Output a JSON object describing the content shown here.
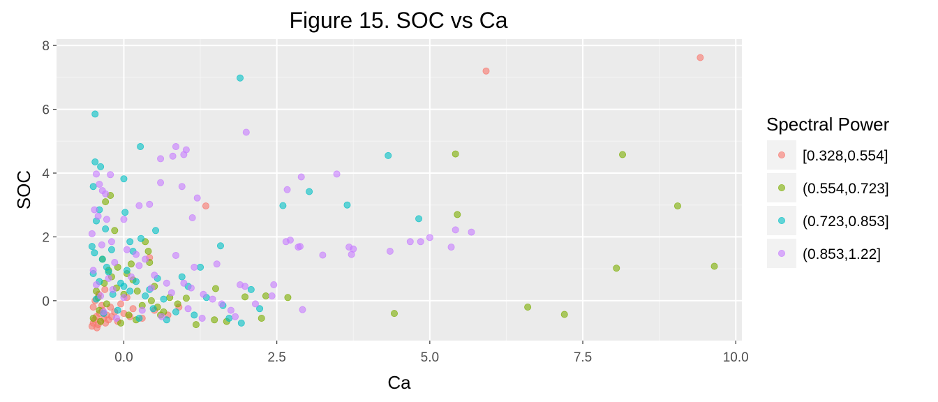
{
  "chart_data": {
    "type": "scatter",
    "title": "Figure 15. SOC vs Ca",
    "xlabel": "Ca",
    "ylabel": "SOC",
    "xlim": [
      -1.1,
      10.1
    ],
    "ylim": [
      -1.25,
      8.2
    ],
    "x_ticks": [
      0.0,
      2.5,
      5.0,
      7.5,
      10.0
    ],
    "x_tick_labels": [
      "0.0",
      "2.5",
      "5.0",
      "7.5",
      "10.0"
    ],
    "y_ticks": [
      0,
      2,
      4,
      6,
      8
    ],
    "y_tick_labels": [
      "0",
      "2",
      "4",
      "6",
      "8"
    ],
    "grid": true,
    "background": "#ebebeb",
    "legend": {
      "title": "Spectral Power",
      "position": "right"
    },
    "series": [
      {
        "name": "[0.328,0.554]",
        "color": "#f8766d",
        "points": [
          [
            9.42,
            7.62
          ],
          [
            5.92,
            7.2
          ],
          [
            1.34,
            2.97
          ],
          [
            0.42,
            1.35
          ],
          [
            -0.52,
            -0.8
          ],
          [
            -0.5,
            -0.7
          ],
          [
            -0.48,
            -0.6
          ],
          [
            -0.45,
            -0.5
          ],
          [
            -0.42,
            -0.75
          ],
          [
            -0.4,
            -0.4
          ],
          [
            -0.38,
            -0.65
          ],
          [
            -0.35,
            -0.3
          ],
          [
            -0.33,
            -0.55
          ],
          [
            -0.3,
            -0.7
          ],
          [
            -0.28,
            -0.45
          ],
          [
            -0.25,
            -0.6
          ],
          [
            -0.22,
            -0.2
          ],
          [
            -0.2,
            -0.5
          ],
          [
            -0.15,
            -0.35
          ],
          [
            -0.1,
            -0.65
          ],
          [
            -0.05,
            -0.1
          ],
          [
            0.0,
            -0.4
          ],
          [
            0.05,
            0.1
          ],
          [
            0.1,
            -0.5
          ],
          [
            -0.5,
            -0.2
          ],
          [
            -0.47,
            0.0
          ],
          [
            -0.44,
            -0.85
          ],
          [
            -0.41,
            0.2
          ],
          [
            -0.36,
            -0.15
          ],
          [
            -0.31,
            0.35
          ],
          [
            0.15,
            -0.25
          ],
          [
            0.3,
            -0.55
          ],
          [
            0.5,
            -0.3
          ],
          [
            0.72,
            -0.45
          ],
          [
            0.9,
            -0.2
          ]
        ]
      },
      {
        "name": "(0.554,0.723]",
        "color": "#7cae00",
        "points": [
          [
            5.42,
            4.6
          ],
          [
            8.15,
            4.58
          ],
          [
            9.05,
            2.97
          ],
          [
            9.65,
            1.08
          ],
          [
            8.05,
            1.02
          ],
          [
            5.45,
            2.7
          ],
          [
            4.42,
            -0.4
          ],
          [
            6.6,
            -0.2
          ],
          [
            7.2,
            -0.43
          ],
          [
            2.68,
            0.1
          ],
          [
            2.25,
            -0.55
          ],
          [
            2.32,
            0.15
          ],
          [
            1.98,
            0.12
          ],
          [
            1.68,
            -0.65
          ],
          [
            1.5,
            0.38
          ],
          [
            1.48,
            -0.6
          ],
          [
            1.18,
            -0.75
          ],
          [
            1.02,
            0.08
          ],
          [
            0.35,
            1.85
          ],
          [
            0.4,
            1.55
          ],
          [
            0.42,
            1.2
          ],
          [
            0.5,
            0.45
          ],
          [
            0.55,
            -0.2
          ],
          [
            0.65,
            -0.35
          ],
          [
            0.75,
            0.1
          ],
          [
            0.88,
            -0.1
          ],
          [
            -0.22,
            3.3
          ],
          [
            -0.3,
            3.1
          ],
          [
            -0.15,
            2.2
          ],
          [
            -0.35,
            1.3
          ],
          [
            -0.1,
            1.05
          ],
          [
            0.05,
            0.85
          ],
          [
            -0.45,
            0.3
          ],
          [
            -0.4,
            -0.3
          ],
          [
            -0.32,
            0.55
          ],
          [
            -0.28,
            -0.1
          ],
          [
            -0.2,
            0.75
          ],
          [
            -0.12,
            0.4
          ],
          [
            -0.05,
            -0.7
          ],
          [
            0.0,
            0.2
          ],
          [
            0.08,
            -0.45
          ],
          [
            0.15,
            0.65
          ],
          [
            0.22,
            0.3
          ],
          [
            0.3,
            -0.15
          ],
          [
            -0.5,
            -0.55
          ],
          [
            -0.42,
            0.1
          ],
          [
            -0.38,
            -0.65
          ],
          [
            -0.25,
            0.95
          ],
          [
            0.12,
            1.15
          ],
          [
            0.2,
            -0.6
          ],
          [
            0.45,
            0.0
          ],
          [
            0.6,
            -0.45
          ]
        ]
      },
      {
        "name": "(0.723,0.853]",
        "color": "#00bfc4",
        "points": [
          [
            1.9,
            6.98
          ],
          [
            -0.47,
            5.85
          ],
          [
            0.27,
            4.83
          ],
          [
            4.32,
            4.55
          ],
          [
            -0.47,
            4.35
          ],
          [
            -0.38,
            4.2
          ],
          [
            0.0,
            3.82
          ],
          [
            -0.5,
            3.58
          ],
          [
            3.03,
            3.42
          ],
          [
            2.6,
            2.98
          ],
          [
            3.65,
            3.0
          ],
          [
            4.82,
            2.57
          ],
          [
            0.02,
            2.77
          ],
          [
            -0.4,
            2.85
          ],
          [
            -0.45,
            2.5
          ],
          [
            -0.3,
            2.25
          ],
          [
            0.52,
            2.2
          ],
          [
            0.28,
            1.95
          ],
          [
            0.15,
            1.55
          ],
          [
            0.1,
            1.85
          ],
          [
            1.58,
            1.72
          ],
          [
            1.25,
            1.05
          ],
          [
            0.95,
            0.75
          ],
          [
            0.55,
            0.7
          ],
          [
            -0.52,
            1.7
          ],
          [
            -0.48,
            1.5
          ],
          [
            -0.35,
            1.3
          ],
          [
            -0.25,
            0.9
          ],
          [
            -0.2,
            1.6
          ],
          [
            -0.05,
            0.55
          ],
          [
            0.05,
            0.95
          ],
          [
            0.1,
            0.3
          ],
          [
            0.2,
            0.6
          ],
          [
            0.35,
            0.15
          ],
          [
            0.48,
            -0.25
          ],
          [
            0.65,
            0.05
          ],
          [
            0.85,
            -0.35
          ],
          [
            1.05,
            0.45
          ],
          [
            1.35,
            0.1
          ],
          [
            1.62,
            -0.15
          ],
          [
            1.72,
            -0.55
          ],
          [
            1.92,
            -0.7
          ],
          [
            2.08,
            0.35
          ],
          [
            2.22,
            -0.25
          ],
          [
            -0.45,
            0.05
          ],
          [
            -0.4,
            0.6
          ],
          [
            -0.33,
            -0.4
          ],
          [
            -0.18,
            0.2
          ],
          [
            -0.1,
            -0.3
          ],
          [
            0.0,
            0.45
          ],
          [
            0.25,
            -0.55
          ],
          [
            0.42,
            0.35
          ],
          [
            0.7,
            -0.6
          ],
          [
            1.15,
            -0.45
          ],
          [
            -0.5,
            0.85
          ],
          [
            -0.28,
            1.05
          ]
        ]
      },
      {
        "name": "(0.853,1.22]",
        "color": "#c77cff",
        "points": [
          [
            2.0,
            5.28
          ],
          [
            0.85,
            4.83
          ],
          [
            1.02,
            4.73
          ],
          [
            0.6,
            4.45
          ],
          [
            0.8,
            4.53
          ],
          [
            0.98,
            4.58
          ],
          [
            3.48,
            3.97
          ],
          [
            -0.22,
            3.95
          ],
          [
            -0.45,
            3.97
          ],
          [
            -0.4,
            3.65
          ],
          [
            -0.35,
            3.45
          ],
          [
            -0.3,
            3.35
          ],
          [
            0.6,
            3.7
          ],
          [
            0.95,
            3.58
          ],
          [
            1.2,
            3.22
          ],
          [
            2.9,
            3.88
          ],
          [
            2.67,
            3.48
          ],
          [
            0.42,
            3.02
          ],
          [
            0.25,
            2.98
          ],
          [
            -0.48,
            2.85
          ],
          [
            -0.42,
            2.65
          ],
          [
            -0.28,
            2.55
          ],
          [
            0.0,
            2.55
          ],
          [
            1.12,
            2.6
          ],
          [
            5.42,
            2.22
          ],
          [
            5.68,
            2.15
          ],
          [
            5.0,
            1.98
          ],
          [
            4.68,
            1.85
          ],
          [
            4.85,
            1.85
          ],
          [
            5.35,
            1.68
          ],
          [
            4.35,
            1.55
          ],
          [
            3.68,
            1.68
          ],
          [
            3.75,
            1.62
          ],
          [
            3.72,
            1.45
          ],
          [
            3.25,
            1.43
          ],
          [
            2.72,
            1.9
          ],
          [
            2.65,
            1.85
          ],
          [
            2.88,
            1.7
          ],
          [
            2.85,
            1.68
          ],
          [
            -0.2,
            1.85
          ],
          [
            0.05,
            1.6
          ],
          [
            0.2,
            1.45
          ],
          [
            0.35,
            1.3
          ],
          [
            0.85,
            1.42
          ],
          [
            1.15,
            1.05
          ],
          [
            1.52,
            1.15
          ],
          [
            0.98,
            0.55
          ],
          [
            1.1,
            0.4
          ],
          [
            1.3,
            0.2
          ],
          [
            1.45,
            0.05
          ],
          [
            1.6,
            -0.1
          ],
          [
            1.75,
            -0.3
          ],
          [
            1.9,
            0.5
          ],
          [
            2.15,
            -0.1
          ],
          [
            2.45,
            0.5
          ],
          [
            2.42,
            0.15
          ],
          [
            2.92,
            -0.28
          ],
          [
            1.98,
            0.45
          ],
          [
            1.82,
            -0.5
          ],
          [
            -0.5,
            0.95
          ],
          [
            -0.45,
            0.5
          ],
          [
            -0.38,
            0.15
          ],
          [
            -0.33,
            -0.35
          ],
          [
            -0.25,
            0.7
          ],
          [
            -0.18,
            0.35
          ],
          [
            -0.12,
            -0.55
          ],
          [
            0.0,
            0.1
          ],
          [
            0.12,
            0.75
          ],
          [
            0.3,
            -0.3
          ],
          [
            0.45,
            0.4
          ],
          [
            0.62,
            -0.5
          ],
          [
            0.78,
            0.25
          ],
          [
            -0.52,
            2.1
          ],
          [
            -0.36,
            1.75
          ],
          [
            -0.15,
            1.2
          ],
          [
            0.25,
            1.1
          ],
          [
            0.5,
            0.8
          ],
          [
            0.7,
            0.55
          ],
          [
            1.28,
            -0.55
          ],
          [
            1.05,
            -0.25
          ]
        ]
      }
    ]
  }
}
